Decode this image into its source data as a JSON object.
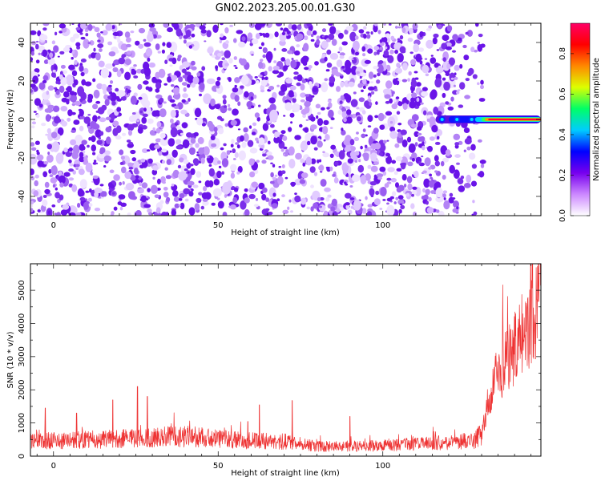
{
  "title": "GN02.2023.205.00.01.G30",
  "chart_data": [
    {
      "type": "heatmap",
      "name": "spectrogram",
      "xlabel": "Height of straight line (km)",
      "ylabel": "Frequency (Hz)",
      "xlim": [
        -7,
        148
      ],
      "ylim": [
        -50,
        50
      ],
      "xticks": [
        0,
        50,
        100
      ],
      "yticks": [
        -40,
        -20,
        0,
        20,
        40
      ],
      "noise_region_x": [
        -7,
        131
      ],
      "signal": {
        "x_start": 120,
        "x_end": 148,
        "frequency": 0,
        "peak_amplitude": 0.85
      },
      "colorbar": {
        "label": "Normalized spectral amplitude",
        "range": [
          0,
          0.95
        ],
        "ticks": [
          0.0,
          0.2,
          0.4,
          0.6,
          0.8
        ],
        "colors": [
          "#ffffff",
          "#cc88ff",
          "#7700ee",
          "#0000ff",
          "#00ccff",
          "#00ff66",
          "#ddff00",
          "#ff8800",
          "#ff0000",
          "#ff0066"
        ]
      }
    },
    {
      "type": "line",
      "name": "snr",
      "xlabel": "Height of straight line (km)",
      "ylabel": "SNR (10 * v/v)",
      "xlim": [
        -7,
        148
      ],
      "ylim": [
        0,
        5800
      ],
      "xticks": [
        0,
        50,
        100
      ],
      "yticks": [
        0,
        1000,
        2000,
        3000,
        4000,
        5000
      ],
      "color": "#ee3333",
      "series": [
        {
          "x": [
            -7,
            0,
            10,
            20,
            30,
            40,
            50,
            60,
            70,
            80,
            90,
            100,
            110,
            120,
            128,
            130,
            132,
            135,
            138,
            141,
            144,
            147,
            148
          ],
          "y": [
            450,
            480,
            500,
            520,
            560,
            600,
            520,
            470,
            440,
            300,
            300,
            320,
            360,
            420,
            480,
            700,
            1600,
            2500,
            2900,
            3400,
            4000,
            4500,
            5200
          ]
        }
      ],
      "spikes": [
        {
          "x": -2.5,
          "y": 1450
        },
        {
          "x": 7,
          "y": 1300
        },
        {
          "x": 18,
          "y": 1700
        },
        {
          "x": 25.5,
          "y": 2100
        },
        {
          "x": 28.5,
          "y": 1800
        },
        {
          "x": 62.5,
          "y": 1550
        },
        {
          "x": 72.5,
          "y": 1680
        },
        {
          "x": 59,
          "y": 1050
        },
        {
          "x": 90,
          "y": 1200
        }
      ]
    }
  ]
}
